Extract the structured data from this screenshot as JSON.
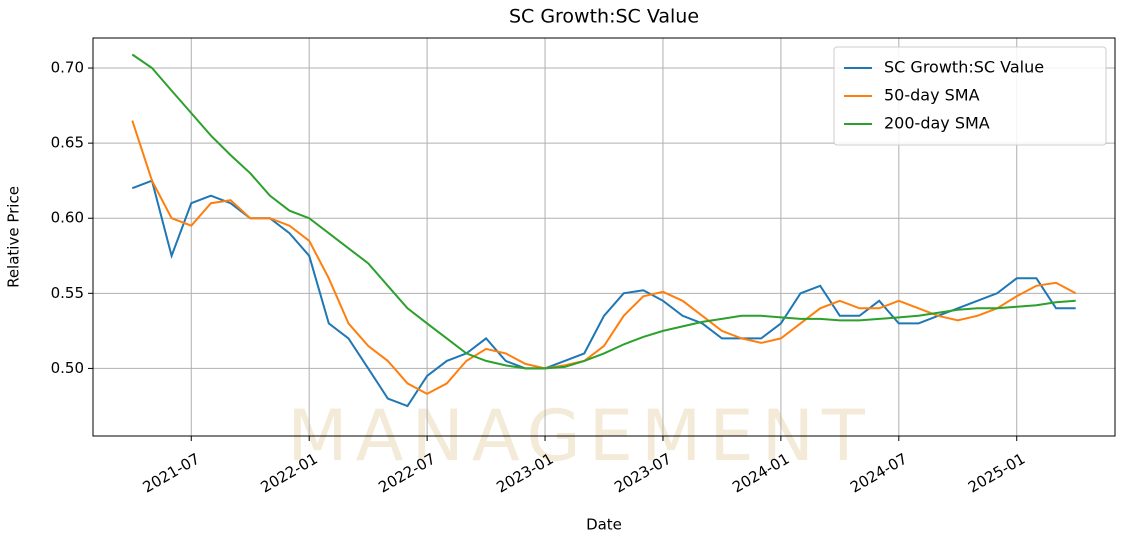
{
  "chart_data": {
    "type": "line",
    "title": "SC Growth:SC Value",
    "xlabel": "Date",
    "ylabel": "Relative Price",
    "watermark": "MANAGEMENT",
    "x": [
      "2021-04",
      "2021-05",
      "2021-06",
      "2021-07",
      "2021-08",
      "2021-09",
      "2021-10",
      "2021-11",
      "2021-12",
      "2022-01",
      "2022-02",
      "2022-03",
      "2022-04",
      "2022-05",
      "2022-06",
      "2022-07",
      "2022-08",
      "2022-09",
      "2022-10",
      "2022-11",
      "2022-12",
      "2023-01",
      "2023-02",
      "2023-03",
      "2023-04",
      "2023-05",
      "2023-06",
      "2023-07",
      "2023-08",
      "2023-09",
      "2023-10",
      "2023-11",
      "2023-12",
      "2024-01",
      "2024-02",
      "2024-03",
      "2024-04",
      "2024-05",
      "2024-06",
      "2024-07",
      "2024-08",
      "2024-09",
      "2024-10",
      "2024-11",
      "2024-12",
      "2025-01",
      "2025-02",
      "2025-03",
      "2025-04"
    ],
    "series": [
      {
        "name": "SC Growth:SC Value",
        "color": "#1f77b4",
        "values": [
          0.62,
          0.625,
          0.575,
          0.61,
          0.615,
          0.61,
          0.6,
          0.6,
          0.59,
          0.575,
          0.53,
          0.52,
          0.5,
          0.48,
          0.475,
          0.495,
          0.505,
          0.51,
          0.52,
          0.505,
          0.5,
          0.5,
          0.505,
          0.51,
          0.535,
          0.55,
          0.552,
          0.545,
          0.535,
          0.53,
          0.52,
          0.52,
          0.52,
          0.53,
          0.55,
          0.555,
          0.535,
          0.535,
          0.545,
          0.53,
          0.53,
          0.535,
          0.54,
          0.545,
          0.55,
          0.56,
          0.56,
          0.54,
          0.54
        ]
      },
      {
        "name": "50-day SMA",
        "color": "#ff7f0e",
        "values": [
          0.665,
          0.625,
          0.6,
          0.595,
          0.61,
          0.612,
          0.6,
          0.6,
          0.595,
          0.585,
          0.56,
          0.53,
          0.515,
          0.505,
          0.49,
          0.483,
          0.49,
          0.505,
          0.513,
          0.51,
          0.503,
          0.5,
          0.502,
          0.505,
          0.515,
          0.535,
          0.548,
          0.551,
          0.545,
          0.535,
          0.525,
          0.52,
          0.517,
          0.52,
          0.53,
          0.54,
          0.545,
          0.54,
          0.54,
          0.545,
          0.54,
          0.535,
          0.532,
          0.535,
          0.54,
          0.548,
          0.555,
          0.557,
          0.55
        ]
      },
      {
        "name": "200-day SMA",
        "color": "#2ca02c",
        "values": [
          0.709,
          0.7,
          0.685,
          0.67,
          0.655,
          0.642,
          0.63,
          0.615,
          0.605,
          0.6,
          0.59,
          0.58,
          0.57,
          0.555,
          0.54,
          0.53,
          0.52,
          0.51,
          0.505,
          0.502,
          0.5,
          0.5,
          0.501,
          0.505,
          0.51,
          0.516,
          0.521,
          0.525,
          0.528,
          0.531,
          0.533,
          0.535,
          0.535,
          0.534,
          0.533,
          0.533,
          0.532,
          0.532,
          0.533,
          0.534,
          0.535,
          0.537,
          0.539,
          0.54,
          0.54,
          0.541,
          0.542,
          0.544,
          0.545
        ]
      }
    ],
    "xlim": [
      "2021-02",
      "2025-06"
    ],
    "xticks": [
      "2021-07",
      "2022-01",
      "2022-07",
      "2023-01",
      "2023-07",
      "2024-01",
      "2024-07",
      "2025-01"
    ],
    "ylim": [
      0.455,
      0.72
    ],
    "yticks": [
      {
        "value": 0.5,
        "label": "0.50"
      },
      {
        "value": 0.55,
        "label": "0.55"
      },
      {
        "value": 0.6,
        "label": "0.60"
      },
      {
        "value": 0.65,
        "label": "0.65"
      },
      {
        "value": 0.7,
        "label": "0.70"
      }
    ],
    "grid": true,
    "legend": "upper right"
  }
}
